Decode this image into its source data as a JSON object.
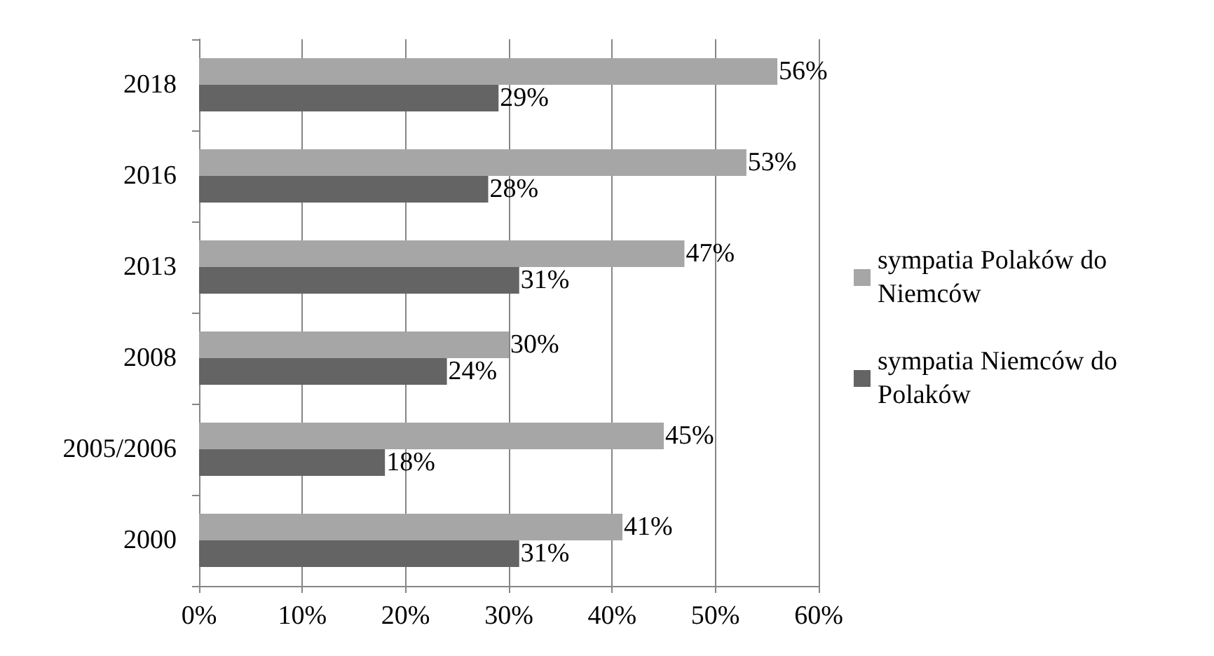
{
  "chart_data": {
    "type": "bar",
    "orientation": "horizontal",
    "categories": [
      "2018",
      "2016",
      "2013",
      "2008",
      "2005/2006",
      "2000"
    ],
    "series": [
      {
        "name": "sympatia Polaków do Niemców",
        "color": "#a6a6a6",
        "values": [
          56,
          53,
          47,
          30,
          45,
          41
        ],
        "value_labels": [
          "56%",
          "53%",
          "47%",
          "30%",
          "45%",
          "41%"
        ]
      },
      {
        "name": "sympatia Niemców do Polaków",
        "color": "#646464",
        "values": [
          29,
          28,
          31,
          24,
          18,
          31
        ],
        "value_labels": [
          "29%",
          "28%",
          "31%",
          "24%",
          "18%",
          "31%"
        ]
      }
    ],
    "xlim": [
      0,
      60
    ],
    "xticks": [
      {
        "value": 0,
        "label": "0%"
      },
      {
        "value": 10,
        "label": "10%"
      },
      {
        "value": 20,
        "label": "20%"
      },
      {
        "value": 30,
        "label": "30%"
      },
      {
        "value": 40,
        "label": "40%"
      },
      {
        "value": 50,
        "label": "50%"
      },
      {
        "value": 60,
        "label": "60%"
      }
    ],
    "grid": "x",
    "legend": "right"
  }
}
